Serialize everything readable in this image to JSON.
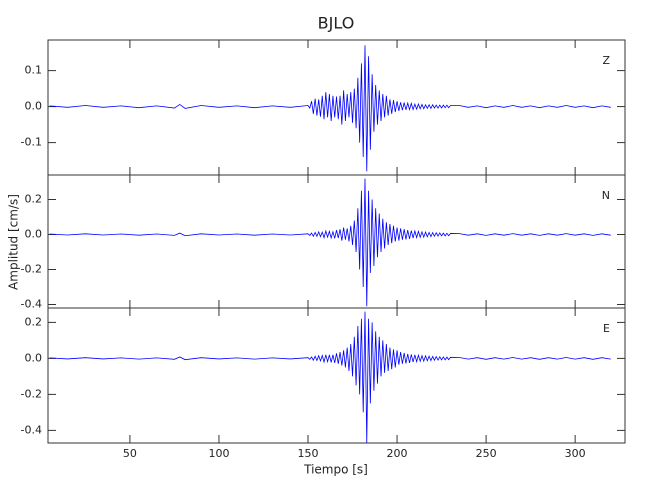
{
  "title": "BJLO",
  "x_label": "Tiempo [s]",
  "y_label": "Amplitud [cm/s]",
  "chart_data": [
    {
      "type": "line",
      "label": "Z",
      "color": "#0000ff",
      "xlim": [
        4,
        328
      ],
      "ylim": [
        -0.19,
        0.185
      ],
      "yticks": [
        -0.1,
        {
          "value": 0,
          "label": "0.0"
        },
        0.1
      ],
      "x": [
        5,
        15,
        25,
        35,
        45,
        55,
        65,
        75,
        78,
        81,
        90,
        100,
        110,
        120,
        130,
        140,
        150,
        151,
        152,
        153,
        154,
        155,
        156,
        157,
        158,
        159,
        160,
        161,
        162,
        163,
        164,
        165,
        166,
        167,
        168,
        169,
        170,
        171,
        172,
        173,
        174,
        175,
        176,
        177,
        178,
        179,
        180,
        181,
        182,
        183,
        184,
        185,
        186,
        187,
        188,
        189,
        190,
        191,
        192,
        193,
        194,
        195,
        196,
        197,
        198,
        199,
        200,
        201,
        202,
        203,
        204,
        205,
        206,
        207,
        208,
        209,
        210,
        211,
        212,
        213,
        214,
        215,
        216,
        217,
        218,
        219,
        220,
        221,
        222,
        223,
        224,
        225,
        226,
        227,
        228,
        229,
        230,
        235,
        240,
        245,
        250,
        255,
        260,
        265,
        270,
        275,
        280,
        285,
        290,
        295,
        300,
        305,
        310,
        315,
        320
      ],
      "values": [
        0.002,
        -0.002,
        0.003,
        -0.002,
        0.002,
        -0.003,
        0.002,
        -0.004,
        0.006,
        -0.005,
        0.003,
        -0.002,
        0.002,
        -0.003,
        0.002,
        -0.002,
        0.003,
        -0.004,
        0.015,
        -0.02,
        0.022,
        -0.025,
        0.02,
        -0.028,
        0.03,
        -0.035,
        0.04,
        -0.03,
        0.035,
        -0.04,
        0.03,
        -0.03,
        0.028,
        -0.035,
        0.03,
        -0.05,
        0.045,
        -0.04,
        0.035,
        -0.03,
        0.04,
        -0.045,
        0.05,
        -0.06,
        0.08,
        -0.1,
        0.12,
        -0.14,
        0.17,
        -0.18,
        0.14,
        -0.12,
        0.09,
        -0.07,
        0.06,
        -0.05,
        0.045,
        -0.04,
        0.035,
        -0.03,
        0.03,
        -0.025,
        0.02,
        -0.02,
        0.018,
        -0.015,
        0.015,
        -0.012,
        0.012,
        -0.01,
        0.011,
        -0.009,
        0.01,
        -0.008,
        0.009,
        -0.008,
        0.007,
        -0.007,
        0.007,
        -0.006,
        0.006,
        -0.006,
        0.005,
        -0.005,
        0.005,
        -0.005,
        0.005,
        -0.004,
        0.004,
        -0.004,
        0.004,
        -0.004,
        0.004,
        -0.003,
        0.004,
        -0.003,
        0.003,
        0.003,
        -0.002,
        0.002,
        -0.003,
        0.002,
        -0.002,
        0.003,
        -0.002,
        0.002,
        -0.003,
        0.002,
        -0.002,
        0.003,
        -0.002,
        0.002,
        -0.003,
        0.002,
        -0.002
      ]
    },
    {
      "type": "line",
      "label": "N",
      "color": "#0000ff",
      "xlim": [
        4,
        328
      ],
      "ylim": [
        -0.42,
        0.34
      ],
      "yticks": [
        -0.4,
        -0.2,
        {
          "value": 0,
          "label": "0.0"
        },
        0.2
      ],
      "x": [
        5,
        15,
        25,
        35,
        45,
        55,
        65,
        75,
        78,
        81,
        90,
        100,
        110,
        120,
        130,
        140,
        150,
        151,
        152,
        153,
        154,
        155,
        156,
        157,
        158,
        159,
        160,
        161,
        162,
        163,
        164,
        165,
        166,
        167,
        168,
        169,
        170,
        171,
        172,
        173,
        174,
        175,
        176,
        177,
        178,
        179,
        180,
        181,
        182,
        183,
        184,
        185,
        186,
        187,
        188,
        189,
        190,
        191,
        192,
        193,
        194,
        195,
        196,
        197,
        198,
        199,
        200,
        201,
        202,
        203,
        204,
        205,
        206,
        207,
        208,
        209,
        210,
        211,
        212,
        213,
        214,
        215,
        216,
        217,
        218,
        219,
        220,
        221,
        222,
        223,
        224,
        225,
        226,
        227,
        228,
        229,
        230,
        235,
        240,
        245,
        250,
        255,
        260,
        265,
        270,
        275,
        280,
        285,
        290,
        295,
        300,
        305,
        310,
        315,
        320
      ],
      "values": [
        0.003,
        -0.003,
        0.004,
        -0.003,
        0.003,
        -0.004,
        0.003,
        -0.005,
        0.008,
        -0.007,
        0.004,
        -0.003,
        0.003,
        -0.004,
        0.003,
        -0.003,
        0.004,
        -0.005,
        0.008,
        -0.01,
        0.012,
        -0.01,
        0.015,
        -0.012,
        0.014,
        -0.018,
        0.02,
        -0.015,
        0.018,
        -0.02,
        0.016,
        -0.022,
        0.025,
        -0.02,
        0.03,
        -0.035,
        0.04,
        -0.03,
        0.035,
        -0.04,
        0.05,
        -0.06,
        0.08,
        -0.1,
        0.15,
        -0.2,
        0.25,
        -0.3,
        0.32,
        -0.41,
        0.25,
        -0.22,
        0.2,
        -0.18,
        0.15,
        -0.13,
        0.12,
        -0.1,
        0.09,
        -0.08,
        0.07,
        -0.06,
        0.06,
        -0.05,
        0.05,
        -0.04,
        0.04,
        -0.035,
        0.035,
        -0.03,
        0.03,
        -0.028,
        0.025,
        -0.025,
        0.022,
        -0.02,
        0.02,
        -0.018,
        0.018,
        -0.016,
        0.015,
        -0.015,
        0.014,
        -0.013,
        0.012,
        -0.012,
        0.011,
        -0.01,
        0.01,
        -0.009,
        0.009,
        -0.008,
        0.008,
        -0.008,
        0.007,
        -0.007,
        0.006,
        0.005,
        -0.004,
        0.004,
        -0.005,
        0.004,
        -0.004,
        0.005,
        -0.004,
        0.004,
        -0.005,
        0.004,
        -0.004,
        0.005,
        -0.004,
        0.004,
        -0.005,
        0.004,
        -0.004
      ]
    },
    {
      "type": "line",
      "label": "E",
      "color": "#0000ff",
      "xlim": [
        4,
        328
      ],
      "ylim": [
        -0.47,
        0.28
      ],
      "xticks": [
        50,
        100,
        150,
        200,
        250,
        300
      ],
      "yticks": [
        -0.4,
        -0.2,
        {
          "value": 0,
          "label": "0.0"
        },
        0.2
      ],
      "x": [
        5,
        15,
        25,
        35,
        45,
        55,
        65,
        75,
        78,
        81,
        90,
        100,
        110,
        120,
        130,
        140,
        150,
        151,
        152,
        153,
        154,
        155,
        156,
        157,
        158,
        159,
        160,
        161,
        162,
        163,
        164,
        165,
        166,
        167,
        168,
        169,
        170,
        171,
        172,
        173,
        174,
        175,
        176,
        177,
        178,
        179,
        180,
        181,
        182,
        183,
        184,
        185,
        186,
        187,
        188,
        189,
        190,
        191,
        192,
        193,
        194,
        195,
        196,
        197,
        198,
        199,
        200,
        201,
        202,
        203,
        204,
        205,
        206,
        207,
        208,
        209,
        210,
        211,
        212,
        213,
        214,
        215,
        216,
        217,
        218,
        219,
        220,
        221,
        222,
        223,
        224,
        225,
        226,
        227,
        228,
        229,
        230,
        235,
        240,
        245,
        250,
        255,
        260,
        265,
        270,
        275,
        280,
        285,
        290,
        295,
        300,
        305,
        310,
        315,
        320
      ],
      "values": [
        0.003,
        -0.003,
        0.004,
        -0.003,
        0.003,
        -0.004,
        0.003,
        -0.005,
        0.008,
        -0.007,
        0.004,
        -0.003,
        0.003,
        -0.004,
        0.003,
        -0.003,
        0.004,
        -0.005,
        0.008,
        -0.01,
        0.012,
        -0.012,
        0.015,
        -0.014,
        0.016,
        -0.02,
        0.02,
        -0.018,
        0.02,
        -0.022,
        0.02,
        -0.025,
        0.028,
        -0.03,
        0.035,
        -0.04,
        0.045,
        -0.05,
        0.06,
        -0.07,
        0.08,
        -0.1,
        0.12,
        -0.15,
        0.18,
        -0.2,
        0.22,
        -0.3,
        0.26,
        -0.47,
        0.22,
        -0.25,
        0.2,
        -0.18,
        0.15,
        -0.14,
        0.12,
        -0.1,
        0.1,
        -0.08,
        0.08,
        -0.07,
        0.06,
        -0.06,
        0.05,
        -0.05,
        0.045,
        -0.035,
        0.035,
        -0.03,
        0.03,
        -0.028,
        0.025,
        -0.025,
        0.022,
        -0.02,
        0.02,
        -0.018,
        0.018,
        -0.016,
        0.015,
        -0.015,
        0.014,
        -0.013,
        0.012,
        -0.012,
        0.011,
        -0.01,
        0.01,
        -0.009,
        0.009,
        -0.008,
        0.008,
        -0.008,
        0.007,
        -0.007,
        0.006,
        0.005,
        -0.004,
        0.004,
        -0.005,
        0.004,
        -0.004,
        0.005,
        -0.004,
        0.004,
        -0.005,
        0.004,
        -0.004,
        0.005,
        -0.004,
        0.004,
        -0.005,
        0.004,
        -0.004
      ]
    }
  ]
}
